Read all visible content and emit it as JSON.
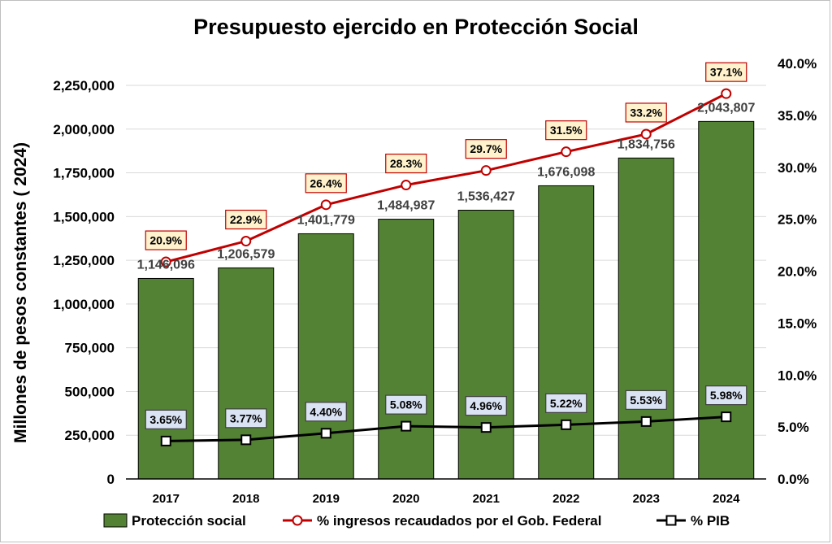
{
  "chart_data": {
    "type": "bar",
    "title": "Presupuesto ejercido en Protección Social",
    "ylabel": "Millones de pesos constantes ( 2024)",
    "xlabel": "",
    "categories": [
      "2017",
      "2018",
      "2019",
      "2020",
      "2021",
      "2022",
      "2023",
      "2024"
    ],
    "ylim": [
      0,
      2250000
    ],
    "y_ticks": [
      "0",
      "250,000",
      "500,000",
      "750,000",
      "1,000,000",
      "1,250,000",
      "1,500,000",
      "1,750,000",
      "2,000,000",
      "2,250,000"
    ],
    "y2lim": [
      0,
      40
    ],
    "y2_ticks": [
      "0.0%",
      "5.0%",
      "10.0%",
      "15.0%",
      "20.0%",
      "25.0%",
      "30.0%",
      "35.0%",
      "40.0%"
    ],
    "grid": true,
    "legend_position": "bottom",
    "series": [
      {
        "name": "Protección social",
        "kind": "bar",
        "axis": "left",
        "color": "#548235",
        "values": [
          1146096,
          1206579,
          1401779,
          1484987,
          1536427,
          1676098,
          1834756,
          2043807
        ],
        "labels": [
          "1,146,096",
          "1,206,579",
          "1,401,779",
          "1,484,987",
          "1,536,427",
          "1,676,098",
          "1,834,756",
          "2,043,807"
        ]
      },
      {
        "name": "% ingresos recaudados por el Gob. Federal",
        "kind": "line",
        "axis": "right",
        "color": "#c00000",
        "marker": "circle",
        "values": [
          20.9,
          22.9,
          26.4,
          28.3,
          29.7,
          31.5,
          33.2,
          37.1
        ],
        "labels": [
          "20.9%",
          "22.9%",
          "26.4%",
          "28.3%",
          "29.7%",
          "31.5%",
          "33.2%",
          "37.1%"
        ],
        "label_bg": "#fff2cc",
        "label_border": "#c00000"
      },
      {
        "name": "% PIB",
        "kind": "line",
        "axis": "right",
        "color": "#000000",
        "marker": "square",
        "values": [
          3.65,
          3.77,
          4.4,
          5.08,
          4.96,
          5.22,
          5.53,
          5.98
        ],
        "labels": [
          "3.65%",
          "3.77%",
          "4.40%",
          "5.08%",
          "4.96%",
          "5.22%",
          "5.53%",
          "5.98%"
        ],
        "label_bg": "#dae3f3",
        "label_border": "#404040"
      }
    ]
  }
}
